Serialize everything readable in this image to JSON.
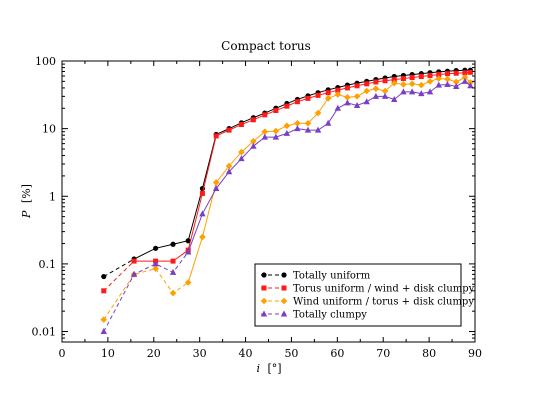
{
  "chart_data": {
    "type": "line",
    "title": "Compact torus",
    "xlabel": {
      "italic": "i",
      "unit": "[°]"
    },
    "ylabel": {
      "italic": "P",
      "unit": "[%]"
    },
    "xlim": [
      0,
      90
    ],
    "ylim": [
      0.007,
      100
    ],
    "y_scale": "log",
    "x_ticks": [
      0,
      10,
      20,
      30,
      40,
      50,
      60,
      70,
      80,
      90
    ],
    "y_ticks": [
      {
        "value": 0.01,
        "label": "0.01"
      },
      {
        "value": 0.1,
        "label": "0.1"
      },
      {
        "value": 1,
        "label": "1"
      },
      {
        "value": 10,
        "label": "10"
      },
      {
        "value": 100,
        "label": "100"
      }
    ],
    "grid": false,
    "legend_position": "lower-right",
    "series": [
      {
        "name": "Totally uniform",
        "color": "#000000",
        "marker": "circle",
        "x": [
          9.1,
          15.7,
          20.4,
          24.2,
          27.5,
          30.6,
          33.6,
          36.4,
          39.1,
          41.7,
          44.2,
          46.6,
          49.0,
          51.3,
          53.6,
          55.8,
          58.0,
          60.1,
          62.2,
          64.3,
          66.4,
          68.4,
          70.4,
          72.4,
          74.4,
          76.3,
          78.3,
          80.2,
          82.1,
          84.0,
          85.9,
          87.8,
          89.0
        ],
        "y": [
          0.065,
          0.118,
          0.17,
          0.195,
          0.22,
          1.3,
          8.2,
          10,
          12.2,
          14.5,
          17,
          20,
          23.5,
          27,
          30.5,
          34,
          37.5,
          40.5,
          44,
          47,
          50,
          53,
          56,
          59,
          61,
          63,
          65,
          67,
          69,
          70.5,
          72,
          73,
          73
        ],
        "dashed_until_index": 1
      },
      {
        "name": "Torus uniform / wind + disk clumpy",
        "color": "#ff1a1a",
        "marker": "square",
        "x": [
          9.1,
          15.7,
          20.4,
          24.2,
          27.5,
          30.6,
          33.6,
          36.4,
          39.1,
          41.7,
          44.2,
          46.6,
          49.0,
          51.3,
          53.6,
          55.8,
          58.0,
          60.1,
          62.2,
          64.3,
          66.4,
          68.4,
          70.4,
          72.4,
          74.4,
          76.3,
          78.3,
          80.2,
          82.1,
          84.0,
          85.9,
          87.8,
          89.0
        ],
        "y": [
          0.04,
          0.11,
          0.11,
          0.11,
          0.16,
          1.1,
          7.8,
          9.5,
          11.5,
          13.5,
          16,
          18.5,
          21.5,
          25,
          28,
          31,
          34,
          37,
          40,
          43,
          46,
          49,
          51,
          53,
          55,
          57,
          59,
          61,
          63,
          65,
          66,
          67,
          68
        ],
        "dashed_until_index": 1
      },
      {
        "name": "Wind uniform / torus + disk clumpy",
        "color": "#ffa000",
        "marker": "diamond",
        "x": [
          9.1,
          15.7,
          20.4,
          24.2,
          27.5,
          30.6,
          33.6,
          36.4,
          39.1,
          41.7,
          44.2,
          46.6,
          49.0,
          51.3,
          53.6,
          55.8,
          58.0,
          60.1,
          62.2,
          64.3,
          66.4,
          68.4,
          70.4,
          72.4,
          74.4,
          76.3,
          78.3,
          80.2,
          82.1,
          84.0,
          85.9,
          87.8,
          89.0
        ],
        "y": [
          0.015,
          0.07,
          0.085,
          0.037,
          0.053,
          0.25,
          1.6,
          2.8,
          4.5,
          6.5,
          9,
          9.2,
          11,
          12,
          12,
          17,
          28,
          32,
          29,
          30,
          36,
          39,
          36,
          47,
          45,
          46,
          44,
          50,
          55,
          54,
          49,
          57,
          48
        ],
        "dashed_until_index": 4
      },
      {
        "name": "Totally clumpy",
        "color": "#7a3fc4",
        "marker": "triangle",
        "x": [
          9.1,
          15.7,
          20.4,
          24.2,
          27.5,
          30.6,
          33.6,
          36.4,
          39.1,
          41.7,
          44.2,
          46.6,
          49.0,
          51.3,
          53.6,
          55.8,
          58.0,
          60.1,
          62.2,
          64.3,
          66.4,
          68.4,
          70.4,
          72.4,
          74.4,
          76.3,
          78.3,
          80.2,
          82.1,
          84.0,
          85.9,
          87.8,
          89.0
        ],
        "y": [
          0.01,
          0.07,
          0.1,
          0.075,
          0.15,
          0.55,
          1.3,
          2.3,
          3.6,
          5.5,
          7.5,
          7.5,
          8.5,
          10,
          9.5,
          9.5,
          12,
          20,
          24,
          22,
          25,
          30,
          30,
          27,
          35,
          35,
          33,
          35,
          44,
          45,
          42,
          50,
          43
        ],
        "dashed_until_index": 4
      }
    ]
  }
}
